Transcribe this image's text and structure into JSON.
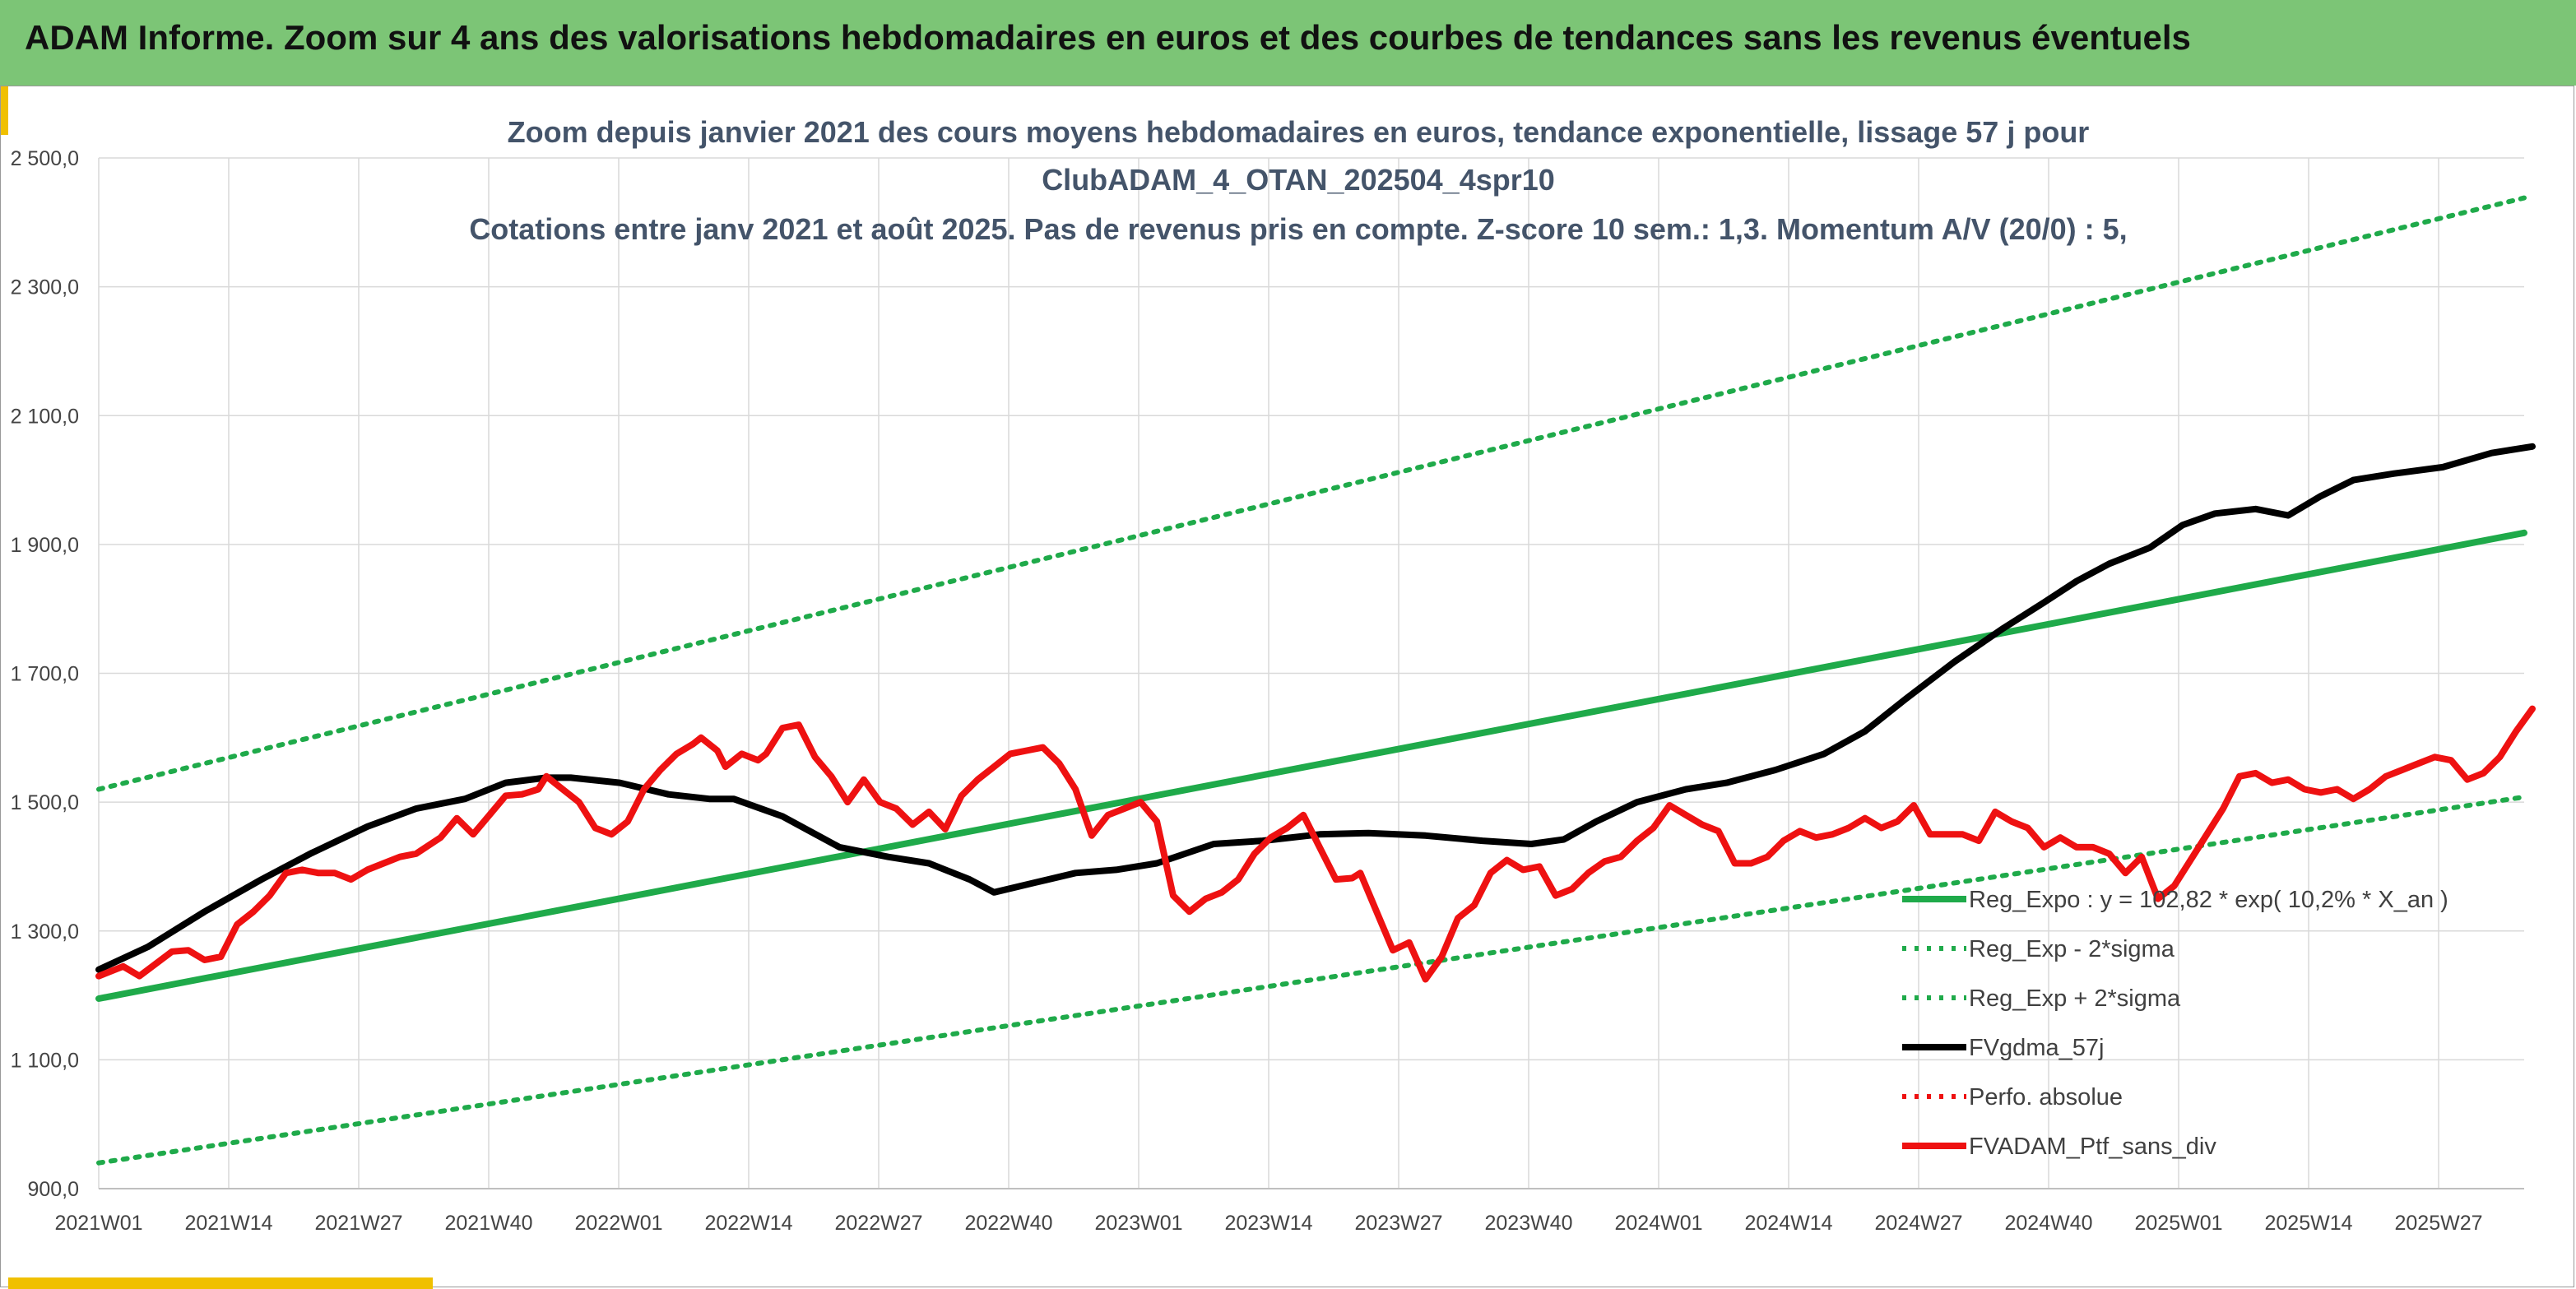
{
  "header": {
    "banner": "ADAM Informe. Zoom sur 4 ans des valorisations hebdomadaires en euros et des courbes de tendances sans les revenus éventuels"
  },
  "chart_data": {
    "type": "line",
    "title_lines": [
      "Zoom depuis janvier 2021 des cours moyens hebdomadaires en euros, tendance exponentielle, lissage 57 j pour",
      "ClubADAM_4_OTAN_202504_4spr10",
      "Cotations entre janv 2021 et août 2025. Pas de revenus pris en compte. Z-score 10 sem.: 1,3. Momentum A/V (20/0) : 5,"
    ],
    "ylim": [
      900,
      2500
    ],
    "y_ticks": [
      "900,0",
      "1 100,0",
      "1 300,0",
      "1 500,0",
      "1 700,0",
      "1 900,0",
      "2 100,0",
      "2 300,0",
      "2 500,0"
    ],
    "x_ticks": [
      "2021W01",
      "2021W14",
      "2021W27",
      "2021W40",
      "2022W01",
      "2022W14",
      "2022W27",
      "2022W40",
      "2023W01",
      "2023W14",
      "2023W27",
      "2023W40",
      "2024W01",
      "2024W14",
      "2024W27",
      "2024W40",
      "2025W01",
      "2025W14",
      "2025W27"
    ],
    "x_range_weeks": [
      0,
      245
    ],
    "grid": true,
    "legend_position": "right",
    "colors": {
      "reg_expo": "#1faa4a",
      "sigma": "#1faa4a",
      "gdma": "#000000",
      "perfo": "#ee1111",
      "ptf": "#ee1111"
    },
    "series": [
      {
        "name": "Reg_Expo : y = 102,82 * exp( 10,2% *  X_an )",
        "style": "solid-green",
        "points": [
          [
            0,
            1195
          ],
          [
            245,
            1918
          ]
        ]
      },
      {
        "name": "Reg_Exp - 2*sigma",
        "style": "dotted-green",
        "points": [
          [
            0,
            940
          ],
          [
            245,
            1508
          ]
        ]
      },
      {
        "name": "Reg_Exp + 2*sigma",
        "style": "dotted-green",
        "points": [
          [
            0,
            1520
          ],
          [
            245,
            2438
          ]
        ]
      },
      {
        "name": "FVgdma_57j",
        "style": "solid-black",
        "points": [
          [
            0,
            1240
          ],
          [
            6,
            1275
          ],
          [
            13,
            1330
          ],
          [
            20,
            1380
          ],
          [
            26,
            1420
          ],
          [
            33,
            1462
          ],
          [
            39,
            1490
          ],
          [
            45,
            1505
          ],
          [
            50,
            1530
          ],
          [
            55,
            1538
          ],
          [
            58,
            1538
          ],
          [
            64,
            1530
          ],
          [
            70,
            1512
          ],
          [
            75,
            1505
          ],
          [
            78,
            1505
          ],
          [
            84,
            1478
          ],
          [
            91,
            1430
          ],
          [
            97,
            1415
          ],
          [
            102,
            1405
          ],
          [
            107,
            1380
          ],
          [
            110,
            1360
          ],
          [
            115,
            1375
          ],
          [
            120,
            1390
          ],
          [
            125,
            1395
          ],
          [
            130,
            1405
          ],
          [
            137,
            1435
          ],
          [
            143,
            1440
          ],
          [
            150,
            1450
          ],
          [
            156,
            1452
          ],
          [
            163,
            1448
          ],
          [
            170,
            1440
          ],
          [
            176,
            1435
          ],
          [
            180,
            1442
          ],
          [
            184,
            1470
          ],
          [
            189,
            1500
          ],
          [
            195,
            1520
          ],
          [
            200,
            1530
          ],
          [
            206,
            1550
          ],
          [
            212,
            1575
          ],
          [
            217,
            1610
          ],
          [
            222,
            1660
          ],
          [
            228,
            1718
          ],
          [
            234,
            1770
          ],
          [
            239,
            1810
          ],
          [
            243,
            1843
          ],
          [
            247,
            1870
          ],
          [
            252,
            1895
          ],
          [
            256,
            1930
          ],
          [
            260,
            1948
          ],
          [
            265,
            1955
          ],
          [
            269,
            1945
          ],
          [
            273,
            1975
          ],
          [
            277,
            2000
          ],
          [
            282,
            2010
          ],
          [
            288,
            2020
          ],
          [
            294,
            2042
          ],
          [
            299,
            2052
          ]
        ]
      },
      {
        "name": "Perfo. absolue",
        "style": "dotted-red",
        "points": []
      },
      {
        "name": "FVADAM_Ptf_sans_div",
        "style": "solid-red",
        "points": [
          [
            0,
            1230
          ],
          [
            3,
            1245
          ],
          [
            5,
            1230
          ],
          [
            9,
            1268
          ],
          [
            11,
            1270
          ],
          [
            13,
            1255
          ],
          [
            15,
            1260
          ],
          [
            17,
            1310
          ],
          [
            19,
            1330
          ],
          [
            21,
            1355
          ],
          [
            23,
            1390
          ],
          [
            25,
            1395
          ],
          [
            27,
            1390
          ],
          [
            29,
            1390
          ],
          [
            31,
            1380
          ],
          [
            33,
            1395
          ],
          [
            35,
            1405
          ],
          [
            37,
            1415
          ],
          [
            39,
            1420
          ],
          [
            42,
            1445
          ],
          [
            44,
            1475
          ],
          [
            46,
            1450
          ],
          [
            48,
            1480
          ],
          [
            50,
            1510
          ],
          [
            52,
            1512
          ],
          [
            54,
            1520
          ],
          [
            55,
            1540
          ],
          [
            57,
            1520
          ],
          [
            59,
            1500
          ],
          [
            61,
            1460
          ],
          [
            63,
            1450
          ],
          [
            65,
            1470
          ],
          [
            67,
            1520
          ],
          [
            69,
            1550
          ],
          [
            71,
            1575
          ],
          [
            73,
            1590
          ],
          [
            74,
            1600
          ],
          [
            76,
            1580
          ],
          [
            77,
            1555
          ],
          [
            79,
            1575
          ],
          [
            81,
            1565
          ],
          [
            82,
            1575
          ],
          [
            84,
            1615
          ],
          [
            86,
            1620
          ],
          [
            88,
            1570
          ],
          [
            90,
            1540
          ],
          [
            92,
            1500
          ],
          [
            94,
            1535
          ],
          [
            96,
            1500
          ],
          [
            98,
            1490
          ],
          [
            100,
            1465
          ],
          [
            102,
            1485
          ],
          [
            104,
            1458
          ],
          [
            106,
            1510
          ],
          [
            108,
            1535
          ],
          [
            110,
            1555
          ],
          [
            112,
            1575
          ],
          [
            114,
            1580
          ],
          [
            116,
            1585
          ],
          [
            118,
            1560
          ],
          [
            120,
            1520
          ],
          [
            122,
            1448
          ],
          [
            124,
            1480
          ],
          [
            126,
            1490
          ],
          [
            128,
            1500
          ],
          [
            130,
            1470
          ],
          [
            132,
            1355
          ],
          [
            134,
            1330
          ],
          [
            136,
            1350
          ],
          [
            138,
            1360
          ],
          [
            140,
            1380
          ],
          [
            142,
            1420
          ],
          [
            144,
            1445
          ],
          [
            146,
            1460
          ],
          [
            148,
            1480
          ],
          [
            150,
            1430
          ],
          [
            152,
            1380
          ],
          [
            154,
            1382
          ],
          [
            155,
            1390
          ],
          [
            157,
            1330
          ],
          [
            159,
            1270
          ],
          [
            161,
            1282
          ],
          [
            163,
            1225
          ],
          [
            165,
            1260
          ],
          [
            167,
            1320
          ],
          [
            169,
            1340
          ],
          [
            171,
            1390
          ],
          [
            173,
            1410
          ],
          [
            175,
            1395
          ],
          [
            177,
            1400
          ],
          [
            179,
            1355
          ],
          [
            181,
            1365
          ],
          [
            183,
            1390
          ],
          [
            185,
            1408
          ],
          [
            187,
            1415
          ],
          [
            189,
            1440
          ],
          [
            191,
            1460
          ],
          [
            193,
            1495
          ],
          [
            195,
            1480
          ],
          [
            197,
            1465
          ],
          [
            199,
            1455
          ],
          [
            201,
            1405
          ],
          [
            203,
            1405
          ],
          [
            205,
            1415
          ],
          [
            207,
            1440
          ],
          [
            209,
            1455
          ],
          [
            211,
            1445
          ],
          [
            213,
            1450
          ],
          [
            215,
            1460
          ],
          [
            217,
            1475
          ],
          [
            219,
            1460
          ],
          [
            221,
            1470
          ],
          [
            223,
            1495
          ],
          [
            225,
            1450
          ],
          [
            227,
            1450
          ],
          [
            229,
            1450
          ],
          [
            231,
            1440
          ],
          [
            233,
            1485
          ],
          [
            235,
            1470
          ],
          [
            237,
            1460
          ],
          [
            239,
            1430
          ],
          [
            241,
            1445
          ],
          [
            243,
            1430
          ],
          [
            245,
            1430
          ],
          [
            247,
            1420
          ],
          [
            249,
            1390
          ],
          [
            251,
            1415
          ],
          [
            253,
            1350
          ],
          [
            255,
            1370
          ],
          [
            257,
            1410
          ],
          [
            259,
            1450
          ],
          [
            261,
            1490
          ],
          [
            263,
            1540
          ],
          [
            265,
            1545
          ],
          [
            267,
            1530
          ],
          [
            269,
            1535
          ],
          [
            271,
            1520
          ],
          [
            273,
            1515
          ],
          [
            275,
            1520
          ],
          [
            277,
            1505
          ],
          [
            279,
            1520
          ],
          [
            281,
            1540
          ],
          [
            283,
            1550
          ],
          [
            285,
            1560
          ],
          [
            287,
            1570
          ],
          [
            289,
            1565
          ],
          [
            291,
            1535
          ],
          [
            293,
            1545
          ],
          [
            295,
            1570
          ],
          [
            297,
            1610
          ],
          [
            299,
            1645
          ]
        ]
      }
    ]
  }
}
